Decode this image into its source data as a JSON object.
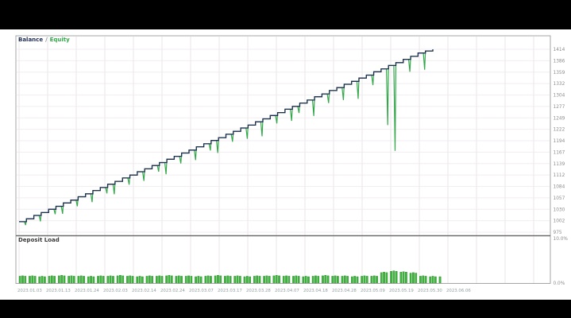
{
  "legend": {
    "balance_label": "Balance",
    "separator": "/",
    "equity_label": "Equity",
    "balance_color": "#1f2d52",
    "equity_color": "#35a84c"
  },
  "deposit_panel": {
    "label": "Deposit Load",
    "bar_fill_color": "#3fb53f",
    "bar_edge_color": "#2a8c2a"
  },
  "chart_data": [
    {
      "type": "line",
      "title": "Balance / Equity",
      "ylabel": "Balance",
      "start_balance": 1000,
      "ylim": [
        975,
        1445
      ],
      "y_ticks": [
        1414,
        1386,
        1359,
        1332,
        1304,
        1277,
        1249,
        1222,
        1194,
        1167,
        1139,
        1112,
        1084,
        1057,
        1030,
        1002,
        975
      ],
      "x_tick_labels": [
        "2023.01.03",
        "2023.01.13",
        "2023.01.24",
        "2023.02.03",
        "2023.02.14",
        "2023.02.24",
        "2023.03.07",
        "2023.03.17",
        "2023.03.28",
        "2023.04.07",
        "2023.04.18",
        "2023.04.28",
        "2023.05.09",
        "2023.05.19",
        "2023.05.30",
        "2023.06.06"
      ],
      "series": [
        {
          "name": "Balance",
          "values": [
            1007,
            1015,
            1022,
            1030,
            1037,
            1045,
            1052,
            1060,
            1067,
            1075,
            1082,
            1090,
            1097,
            1105,
            1112,
            1120,
            1127,
            1135,
            1142,
            1150,
            1157,
            1165,
            1172,
            1180,
            1187,
            1195,
            1202,
            1210,
            1217,
            1225,
            1232,
            1240,
            1247,
            1255,
            1262,
            1270,
            1277,
            1285,
            1292,
            1300,
            1307,
            1315,
            1322,
            1330,
            1337,
            1345,
            1352,
            1360,
            1367,
            1375,
            1382,
            1390,
            1397,
            1405,
            1410,
            1414
          ]
        },
        {
          "name": "Equity drawdown depth",
          "values": [
            8,
            0,
            14,
            0,
            12,
            18,
            0,
            15,
            0,
            20,
            0,
            14,
            24,
            0,
            16,
            0,
            22,
            0,
            15,
            28,
            0,
            17,
            0,
            24,
            0,
            16,
            30,
            0,
            18,
            0,
            26,
            0,
            35,
            0,
            19,
            0,
            28,
            16,
            0,
            38,
            0,
            22,
            0,
            30,
            0,
            42,
            0,
            24,
            0,
            135,
            205,
            0,
            30,
            0,
            40,
            0
          ]
        }
      ]
    },
    {
      "type": "bar",
      "title": "Deposit Load",
      "ylim": [
        0,
        10
      ],
      "y_max_label": "10.0%",
      "y_min_label": "0.0%",
      "cluster_values_pct": [
        1.5,
        1.5,
        1.4,
        1.5,
        1.6,
        1.5,
        1.5,
        1.4,
        1.5,
        1.5,
        1.6,
        1.5,
        1.4,
        1.5,
        1.5,
        1.6,
        1.5,
        1.5,
        1.4,
        1.5,
        1.6,
        1.5,
        1.5,
        1.4,
        1.5,
        1.5,
        1.6,
        1.5,
        1.5,
        1.4,
        1.5,
        1.6,
        1.5,
        1.5,
        1.4,
        1.5,
        1.5,
        2.3,
        2.6,
        2.4,
        2.2,
        1.5,
        1.4
      ],
      "tail_bar_pct": 1.4
    }
  ]
}
